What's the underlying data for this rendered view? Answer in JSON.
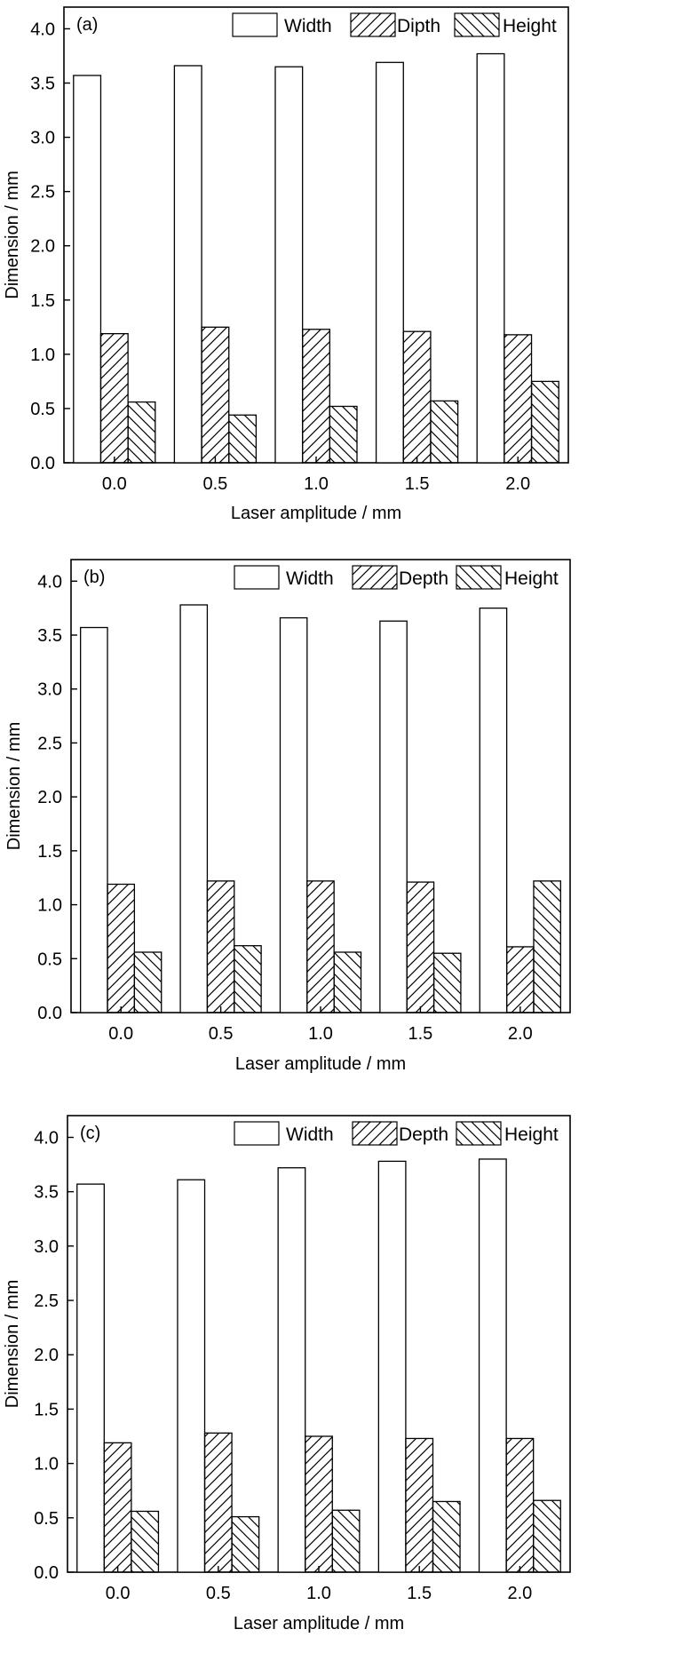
{
  "colors": {
    "bar_fill": "#ffffff",
    "stroke": "#000000"
  },
  "chart_data": [
    {
      "type": "bar",
      "panel_label": "(a)",
      "categories": [
        "0.0",
        "0.5",
        "1.0",
        "1.5",
        "2.0"
      ],
      "series": [
        {
          "name": "Width",
          "pattern": "none",
          "values": [
            3.57,
            3.66,
            3.65,
            3.69,
            3.77
          ]
        },
        {
          "name": "Dipth",
          "pattern": "hatch-forward",
          "values": [
            1.19,
            1.25,
            1.23,
            1.21,
            1.18
          ]
        },
        {
          "name": "Height",
          "pattern": "hatch-back",
          "values": [
            0.56,
            0.44,
            0.52,
            0.57,
            0.75
          ]
        }
      ],
      "xlabel": "Laser amplitude / mm",
      "ylabel": "Dimension / mm",
      "ylim": [
        0,
        4.2
      ],
      "yticks": [
        "0.0",
        "0.5",
        "1.0",
        "1.5",
        "2.0",
        "2.5",
        "3.0",
        "3.5",
        "4.0"
      ],
      "legend_position": "top-right"
    },
    {
      "type": "bar",
      "panel_label": "(b)",
      "categories": [
        "0.0",
        "0.5",
        "1.0",
        "1.5",
        "2.0"
      ],
      "series": [
        {
          "name": "Width",
          "pattern": "none",
          "values": [
            3.57,
            3.78,
            3.66,
            3.63,
            3.75
          ]
        },
        {
          "name": "Depth",
          "pattern": "hatch-forward",
          "values": [
            1.19,
            1.22,
            1.22,
            1.21,
            0.61
          ]
        },
        {
          "name": "Height",
          "pattern": "hatch-back",
          "values": [
            0.56,
            0.62,
            0.56,
            0.55,
            1.22
          ]
        }
      ],
      "xlabel": "Laser amplitude / mm",
      "ylabel": "Dimension / mm",
      "ylim": [
        0,
        4.2
      ],
      "yticks": [
        "0.0",
        "0.5",
        "1.0",
        "1.5",
        "2.0",
        "2.5",
        "3.0",
        "3.5",
        "4.0"
      ],
      "legend_position": "top-right"
    },
    {
      "type": "bar",
      "panel_label": "(c)",
      "categories": [
        "0.0",
        "0.5",
        "1.0",
        "1.5",
        "2.0"
      ],
      "series": [
        {
          "name": "Width",
          "pattern": "none",
          "values": [
            3.57,
            3.61,
            3.72,
            3.78,
            3.8
          ]
        },
        {
          "name": "Depth",
          "pattern": "hatch-forward",
          "values": [
            1.19,
            1.28,
            1.25,
            1.23,
            1.23
          ]
        },
        {
          "name": "Height",
          "pattern": "hatch-back",
          "values": [
            0.56,
            0.51,
            0.57,
            0.65,
            0.66
          ]
        }
      ],
      "xlabel": "Laser amplitude / mm",
      "ylabel": "Dimension / mm",
      "ylim": [
        0,
        4.2
      ],
      "yticks": [
        "0.0",
        "0.5",
        "1.0",
        "1.5",
        "2.0",
        "2.5",
        "3.0",
        "3.5",
        "4.0"
      ],
      "legend_position": "top-right"
    }
  ]
}
